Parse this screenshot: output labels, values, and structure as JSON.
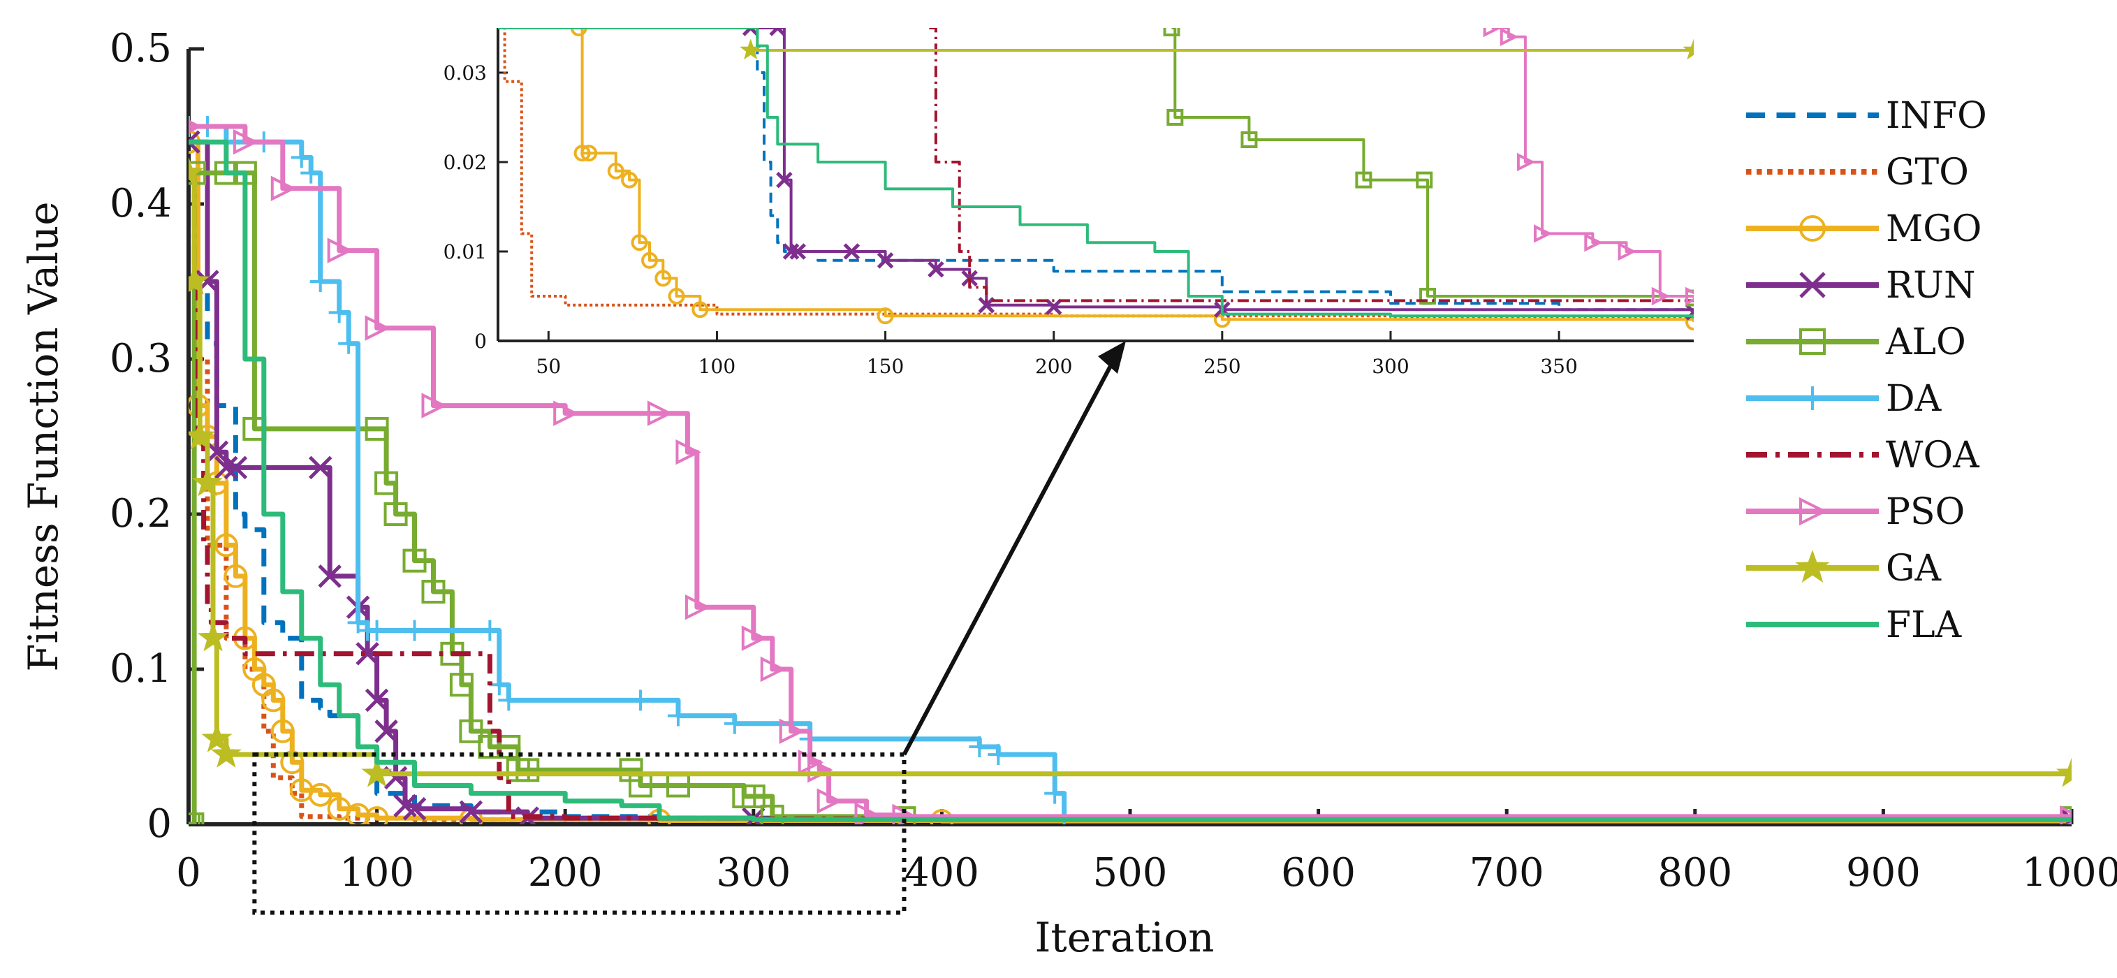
{
  "chart_data": [
    {
      "name": "main",
      "type": "line",
      "xlabel": "Iteration",
      "ylabel": "Fitness Function Value",
      "xlim": [
        0,
        1000
      ],
      "ylim": [
        0,
        0.5
      ],
      "xticks": [
        "0",
        "100",
        "200",
        "300",
        "400",
        "500",
        "600",
        "700",
        "800",
        "900",
        "1000"
      ],
      "yticks": [
        "0",
        "0.1",
        "0.2",
        "0.3",
        "0.4",
        "0.5"
      ],
      "legend": {
        "placement": "right"
      },
      "series": [
        {
          "name": "INFO",
          "color": "#0072BD",
          "style": "dashed",
          "marker": "none",
          "x": [
            0,
            5,
            10,
            15,
            25,
            30,
            40,
            50,
            60,
            70,
            75,
            90,
            100,
            120,
            150,
            200,
            250,
            350,
            1000
          ],
          "y": [
            0.44,
            0.38,
            0.31,
            0.27,
            0.2,
            0.19,
            0.13,
            0.12,
            0.08,
            0.075,
            0.07,
            0.05,
            0.02,
            0.012,
            0.008,
            0.005,
            0.004,
            0.003,
            0.002
          ]
        },
        {
          "name": "GTO",
          "color": "#D95319",
          "style": "dotted",
          "marker": "none",
          "x": [
            0,
            5,
            10,
            20,
            30,
            40,
            45,
            55,
            60,
            80,
            120,
            200,
            300,
            1000
          ],
          "y": [
            0.42,
            0.3,
            0.18,
            0.12,
            0.1,
            0.06,
            0.03,
            0.02,
            0.005,
            0.004,
            0.003,
            0.003,
            0.003,
            0.002
          ]
        },
        {
          "name": "MGO",
          "color": "#EDB120",
          "style": "solid",
          "marker": "circle",
          "x": [
            0,
            5,
            10,
            15,
            20,
            25,
            30,
            35,
            40,
            45,
            50,
            55,
            60,
            70,
            80,
            90,
            100,
            150,
            250,
            400,
            1000
          ],
          "y": [
            0.44,
            0.27,
            0.25,
            0.22,
            0.18,
            0.16,
            0.12,
            0.1,
            0.09,
            0.08,
            0.06,
            0.04,
            0.022,
            0.019,
            0.01,
            0.006,
            0.004,
            0.003,
            0.0025,
            0.0022,
            0.002
          ]
        },
        {
          "name": "RUN",
          "color": "#7E2F8E",
          "style": "solid",
          "marker": "x",
          "x": [
            0,
            10,
            15,
            20,
            25,
            70,
            75,
            90,
            95,
            100,
            105,
            110,
            115,
            120,
            150,
            180,
            300,
            1000
          ],
          "y": [
            0.44,
            0.35,
            0.24,
            0.23,
            0.23,
            0.23,
            0.16,
            0.14,
            0.11,
            0.08,
            0.06,
            0.03,
            0.012,
            0.01,
            0.008,
            0.004,
            0.0035,
            0.003
          ]
        },
        {
          "name": "ALO",
          "color": "#77AC30",
          "style": "solid",
          "marker": "square",
          "x": [
            0,
            2,
            3,
            20,
            30,
            35,
            100,
            105,
            110,
            120,
            130,
            140,
            145,
            150,
            160,
            170,
            175,
            180,
            235,
            240,
            260,
            295,
            300,
            310,
            380,
            1000
          ],
          "y": [
            0,
            0,
            0.42,
            0.42,
            0.42,
            0.255,
            0.255,
            0.22,
            0.2,
            0.17,
            0.15,
            0.11,
            0.09,
            0.06,
            0.05,
            0.05,
            0.035,
            0.035,
            0.035,
            0.025,
            0.025,
            0.018,
            0.018,
            0.005,
            0.004,
            0.004
          ]
        },
        {
          "name": "DA",
          "color": "#4DBEEE",
          "style": "solid",
          "marker": "plus",
          "x": [
            0,
            10,
            20,
            40,
            60,
            65,
            70,
            80,
            85,
            90,
            95,
            100,
            120,
            160,
            165,
            170,
            240,
            260,
            290,
            330,
            420,
            430,
            460,
            465,
            1000
          ],
          "y": [
            0.45,
            0.45,
            0.44,
            0.44,
            0.43,
            0.42,
            0.35,
            0.33,
            0.31,
            0.13,
            0.125,
            0.125,
            0.125,
            0.125,
            0.09,
            0.08,
            0.08,
            0.07,
            0.065,
            0.055,
            0.05,
            0.045,
            0.02,
            0.004,
            0.003
          ]
        },
        {
          "name": "WOA",
          "color": "#A2142F",
          "style": "dashdot",
          "marker": "none",
          "x": [
            0,
            3,
            5,
            8,
            10,
            12,
            20,
            30,
            60,
            100,
            150,
            160,
            165,
            170,
            200,
            300,
            1000
          ],
          "y": [
            0.42,
            0.35,
            0.25,
            0.18,
            0.14,
            0.13,
            0.12,
            0.11,
            0.11,
            0.11,
            0.11,
            0.06,
            0.03,
            0.005,
            0.004,
            0.0035,
            0.0035
          ]
        },
        {
          "name": "PSO",
          "color": "#E377C2",
          "style": "solid",
          "marker": "triangle-right",
          "x": [
            0,
            30,
            50,
            80,
            100,
            130,
            200,
            250,
            265,
            270,
            300,
            310,
            320,
            330,
            335,
            340,
            360,
            380,
            1000
          ],
          "y": [
            0.45,
            0.44,
            0.41,
            0.37,
            0.32,
            0.27,
            0.265,
            0.265,
            0.24,
            0.14,
            0.12,
            0.1,
            0.06,
            0.04,
            0.035,
            0.015,
            0.006,
            0.005,
            0.004
          ]
        },
        {
          "name": "GA",
          "color": "#BCBD22",
          "style": "solid",
          "marker": "star",
          "x": [
            0,
            3,
            6,
            10,
            13,
            15,
            20,
            100,
            1000
          ],
          "y": [
            0.42,
            0.35,
            0.25,
            0.22,
            0.12,
            0.055,
            0.045,
            0.0325,
            0.0325
          ]
        },
        {
          "name": "FLA",
          "color": "#2DBB7A",
          "style": "solid",
          "marker": "none",
          "x": [
            0,
            20,
            30,
            40,
            50,
            60,
            70,
            80,
            90,
            100,
            120,
            150,
            200,
            230,
            250,
            300,
            1000
          ],
          "y": [
            0.44,
            0.42,
            0.3,
            0.2,
            0.15,
            0.12,
            0.09,
            0.07,
            0.05,
            0.04,
            0.025,
            0.02,
            0.015,
            0.012,
            0.004,
            0.003,
            0.0025
          ]
        }
      ]
    },
    {
      "name": "inset",
      "type": "line",
      "xlim": [
        35,
        390
      ],
      "ylim": [
        0,
        0.035
      ],
      "xticks": [
        "50",
        "100",
        "150",
        "200",
        "250",
        "300",
        "350"
      ],
      "yticks": [
        "0",
        "0.01",
        "0.02",
        "0.03"
      ],
      "zoom_box_x": [
        35,
        380
      ],
      "zoom_box_y": [
        -0.057,
        0.045
      ],
      "series": [
        {
          "name": "INFO",
          "x": [
            35,
            90,
            100,
            110,
            112,
            114,
            116,
            118,
            120,
            130,
            150,
            200,
            250,
            300,
            350,
            390
          ],
          "y": [
            0.035,
            0.035,
            0.035,
            0.035,
            0.03,
            0.02,
            0.014,
            0.011,
            0.01,
            0.009,
            0.009,
            0.0078,
            0.0055,
            0.0042,
            0.0035,
            0.003
          ]
        },
        {
          "name": "GTO",
          "x": [
            35,
            37,
            40,
            42,
            45,
            55,
            100,
            200,
            300,
            390
          ],
          "y": [
            0.035,
            0.029,
            0.029,
            0.012,
            0.005,
            0.004,
            0.003,
            0.0028,
            0.0027,
            0.0025
          ]
        },
        {
          "name": "MGO",
          "x": [
            59,
            60,
            62,
            70,
            74,
            77,
            80,
            84,
            88,
            95,
            150,
            250,
            390
          ],
          "y": [
            0.035,
            0.021,
            0.021,
            0.019,
            0.018,
            0.011,
            0.009,
            0.007,
            0.005,
            0.0035,
            0.0028,
            0.0024,
            0.0021
          ]
        },
        {
          "name": "RUN",
          "x": [
            110,
            118,
            120,
            122,
            124,
            140,
            150,
            165,
            175,
            180,
            200,
            250,
            390
          ],
          "y": [
            0.035,
            0.035,
            0.018,
            0.01,
            0.01,
            0.01,
            0.009,
            0.008,
            0.007,
            0.004,
            0.0038,
            0.0035,
            0.0032
          ]
        },
        {
          "name": "ALO",
          "x": [
            235,
            236,
            258,
            292,
            310,
            311,
            390
          ],
          "y": [
            0.035,
            0.025,
            0.0225,
            0.018,
            0.018,
            0.005,
            0.0048
          ]
        },
        {
          "name": "WOA",
          "x": [
            163,
            165,
            172,
            175,
            180,
            200,
            250,
            300,
            390
          ],
          "y": [
            0.035,
            0.02,
            0.01,
            0.006,
            0.0045,
            0.0045,
            0.0045,
            0.0045,
            0.0045
          ]
        },
        {
          "name": "PSO",
          "x": [
            330,
            335,
            340,
            345,
            360,
            370,
            380,
            390
          ],
          "y": [
            0.035,
            0.034,
            0.02,
            0.012,
            0.011,
            0.01,
            0.005,
            0.005
          ]
        },
        {
          "name": "GA",
          "x": [
            110,
            390
          ],
          "y": [
            0.0325,
            0.0325
          ]
        },
        {
          "name": "FLA",
          "x": [
            35,
            110,
            112,
            115,
            118,
            130,
            150,
            170,
            190,
            210,
            230,
            240,
            250,
            300,
            390
          ],
          "y": [
            0.035,
            0.035,
            0.033,
            0.025,
            0.022,
            0.02,
            0.017,
            0.015,
            0.013,
            0.011,
            0.01,
            0.005,
            0.003,
            0.0028,
            0.0025
          ]
        }
      ]
    }
  ]
}
